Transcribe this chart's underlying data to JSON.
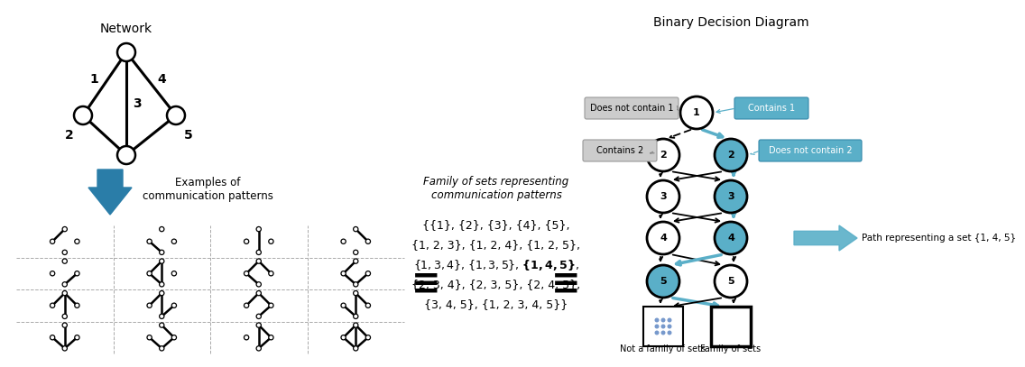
{
  "bg_color": "#ffffff",
  "network_title": "Network",
  "bdd_title": "Binary Decision Diagram",
  "family_label": "Family of sets representing\ncommunication patterns",
  "arrow_color": "#2a7da8",
  "node_color": "#ffffff",
  "node_edge_color": "#000000",
  "blue_path_color": "#5aafc8",
  "blue_label_bg": "#5aafc8",
  "gray_label_bg": "#c8c8c8",
  "does_not_contain_1": "Does not contain 1",
  "contains_1": "Contains 1",
  "contains_2": "Contains 2",
  "does_not_contain_2": "Does not contain 2",
  "path_label": "Path representing a set {1, 4, 5}",
  "not_family_label": "Not a family of sets",
  "family_of_sets_label": "Family of sets",
  "examples_label": "Examples of\ncommunication patterns"
}
